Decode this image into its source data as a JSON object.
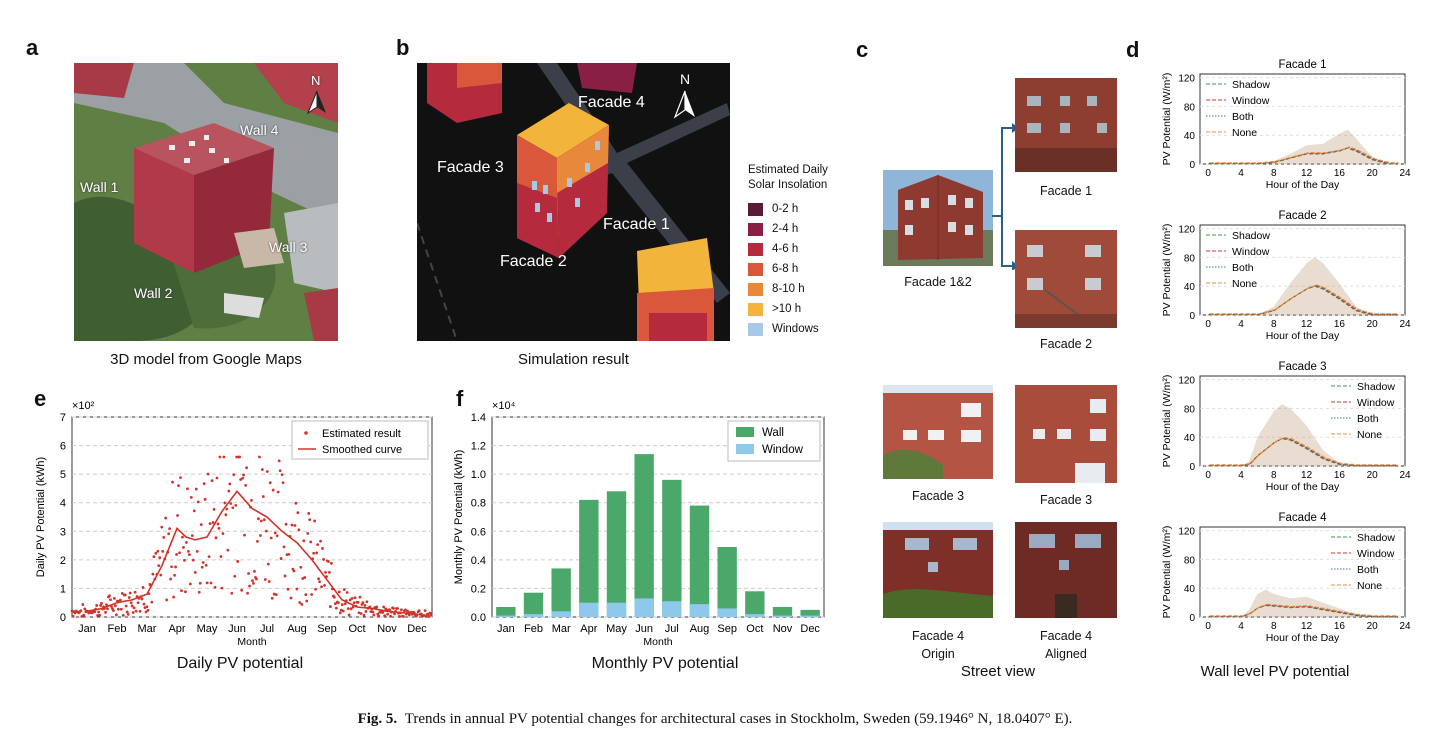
{
  "panels": {
    "a": {
      "letter": "a",
      "caption": "3D model from Google Maps",
      "walls": [
        "Wall 1",
        "Wall 2",
        "Wall 3",
        "Wall 4"
      ],
      "north": "N"
    },
    "b": {
      "letter": "b",
      "caption": "Simulation result",
      "facades": [
        "Facade 1",
        "Facade 2",
        "Facade 3",
        "Facade 4"
      ],
      "north": "N",
      "legend_title": [
        "Estimated Daily",
        "Solar Insolation"
      ],
      "legend": [
        {
          "label": "0-2 h",
          "color": "#5a1a3a"
        },
        {
          "label": "2-4 h",
          "color": "#8a1f45"
        },
        {
          "label": "4-6 h",
          "color": "#b52a3c"
        },
        {
          "label": "6-8 h",
          "color": "#d9573a"
        },
        {
          "label": "8-10 h",
          "color": "#e8883a"
        },
        {
          "label": ">10 h",
          "color": "#f3b43c"
        },
        {
          "label": "Windows",
          "color": "#a8c8e8"
        }
      ]
    },
    "c": {
      "letter": "c",
      "caption": "Street view",
      "photos": [
        "Facade 1&2",
        "Facade 1",
        "Facade 2",
        "Facade 3",
        "Facade 3",
        "Facade 4",
        "Origin",
        "Facade 4",
        "Aligned"
      ]
    },
    "d": {
      "letter": "d",
      "caption": "Wall level PV potential"
    },
    "e": {
      "letter": "e",
      "caption": "Daily PV potential"
    },
    "f": {
      "letter": "f",
      "caption": "Monthly PV potential"
    }
  },
  "figure_caption": {
    "label": "Fig. 5.",
    "text": "Trends in annual PV potential changes for architectural cases in Stockholm, Sweden (59.1946° N, 18.0407° E)."
  },
  "chart_data": [
    {
      "id": "e",
      "type": "scatter",
      "xlabel": "Month",
      "ylabel": "Daily PV Potential (kWh)",
      "multiplier": "×10²",
      "categories": [
        "Jan",
        "Feb",
        "Mar",
        "Apr",
        "May",
        "Jun",
        "Jul",
        "Aug",
        "Sep",
        "Oct",
        "Nov",
        "Dec"
      ],
      "ylim": [
        0,
        7
      ],
      "yticks": [
        0,
        1,
        2,
        3,
        4,
        5,
        6,
        7
      ],
      "legend": [
        "Estimated result",
        "Smoothed curve"
      ],
      "legend_position": "top-right",
      "colors": {
        "points": "#d0352b",
        "curve": "#d0352b"
      },
      "smoothed": {
        "x": [
          0,
          0.5,
          1,
          1.5,
          2,
          2.5,
          3,
          3.3,
          3.6,
          4,
          4.5,
          5,
          5.5,
          6,
          6.5,
          7,
          7.5,
          8,
          8.5,
          9,
          9.5,
          10,
          10.5,
          11
        ],
        "y": [
          0.2,
          0.3,
          0.5,
          0.6,
          0.8,
          1.8,
          3.1,
          2.8,
          2.7,
          2.8,
          3.7,
          4.4,
          3.8,
          3.5,
          3.0,
          2.6,
          2.0,
          1.3,
          0.6,
          0.35,
          0.3,
          0.2,
          0.15,
          0.1
        ]
      }
    },
    {
      "id": "f",
      "type": "bar",
      "stacked": true,
      "xlabel": "Month",
      "ylabel": "Monthly PV Potential (kWh)",
      "multiplier": "×10⁴",
      "categories": [
        "Jan",
        "Feb",
        "Mar",
        "Apr",
        "May",
        "Jun",
        "Jul",
        "Aug",
        "Sep",
        "Oct",
        "Nov",
        "Dec"
      ],
      "ylim": [
        0,
        1.4
      ],
      "yticks": [
        "0.0",
        "0.2",
        "0.4",
        "0.6",
        "0.8",
        "1.0",
        "1.2",
        "1.4"
      ],
      "legend_position": "top-right",
      "series": [
        {
          "name": "Wall",
          "color": "#49a86a",
          "values": [
            0.06,
            0.15,
            0.3,
            0.72,
            0.78,
            1.01,
            0.85,
            0.69,
            0.43,
            0.16,
            0.06,
            0.04
          ]
        },
        {
          "name": "Window",
          "color": "#8ec9ec",
          "values": [
            0.01,
            0.02,
            0.04,
            0.1,
            0.1,
            0.13,
            0.11,
            0.09,
            0.06,
            0.02,
            0.01,
            0.01
          ]
        }
      ]
    },
    {
      "id": "d",
      "type": "line",
      "small_multiples": true,
      "xlabel": "Hour of the Day",
      "ylabel": "PV Potential (W/m²)",
      "xticks": [
        0,
        4,
        8,
        12,
        16,
        20,
        24
      ],
      "yticks": [
        0,
        40,
        80,
        120
      ],
      "xlim": [
        -1,
        24
      ],
      "ylim": [
        0,
        125
      ],
      "series_names": [
        "Shadow",
        "Window",
        "Both",
        "None"
      ],
      "series_colors": [
        "#3a9a4a",
        "#d0352b",
        "#3a6fb0",
        "#f28c28"
      ],
      "plots": [
        {
          "title": "Facade 1",
          "legend_position": "top-left",
          "hours": [
            0,
            4,
            6,
            8,
            10,
            12,
            14,
            16,
            17,
            18,
            20,
            22,
            23
          ],
          "mean": [
            0,
            0,
            0,
            2,
            8,
            14,
            14,
            18,
            22,
            18,
            6,
            0,
            0
          ],
          "upper": [
            0,
            0,
            0,
            4,
            14,
            26,
            28,
            42,
            48,
            36,
            10,
            0,
            0
          ]
        },
        {
          "title": "Facade 2",
          "legend_position": "top-left",
          "hours": [
            0,
            4,
            6,
            8,
            10,
            12,
            13,
            14,
            16,
            18,
            20,
            22,
            23
          ],
          "mean": [
            0,
            0,
            0,
            6,
            22,
            36,
            40,
            36,
            22,
            6,
            0,
            0,
            0
          ],
          "upper": [
            0,
            0,
            0,
            12,
            44,
            72,
            80,
            72,
            44,
            12,
            0,
            0,
            0
          ]
        },
        {
          "title": "Facade 3",
          "legend_position": "top-right",
          "hours": [
            0,
            4,
            5,
            6,
            8,
            9,
            10,
            12,
            14,
            16,
            18,
            20,
            23
          ],
          "mean": [
            0,
            0,
            2,
            14,
            32,
            38,
            36,
            24,
            10,
            2,
            0,
            0,
            0
          ],
          "upper": [
            0,
            0,
            6,
            40,
            76,
            86,
            80,
            56,
            22,
            4,
            0,
            0,
            0
          ]
        },
        {
          "title": "Facade 4",
          "legend_position": "top-right",
          "hours": [
            0,
            4,
            5,
            6,
            7,
            8,
            10,
            12,
            14,
            16,
            18,
            20,
            23
          ],
          "mean": [
            0,
            0,
            4,
            12,
            16,
            15,
            13,
            14,
            10,
            6,
            2,
            0,
            0
          ],
          "upper": [
            0,
            0,
            10,
            32,
            38,
            32,
            26,
            28,
            20,
            12,
            4,
            0,
            0
          ]
        }
      ]
    }
  ]
}
